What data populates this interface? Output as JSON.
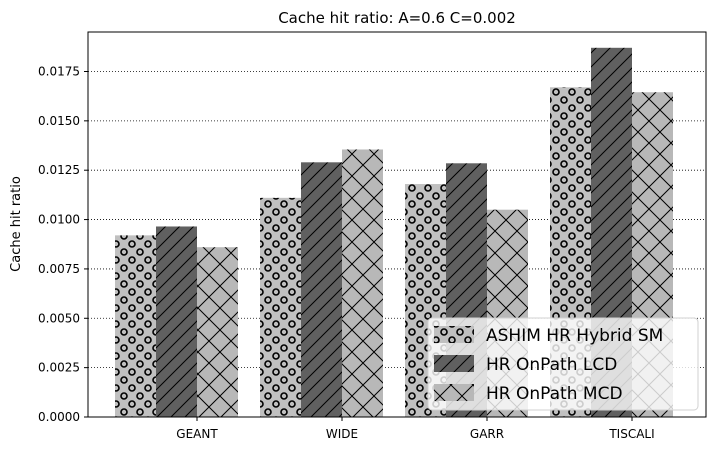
{
  "chart_data": {
    "type": "bar",
    "title": "Cache hit ratio: A=0.6 C=0.002",
    "xlabel": "",
    "ylabel": "Cache hit ratio",
    "categories": [
      "GEANT",
      "WIDE",
      "GARR",
      "TISCALI"
    ],
    "series": [
      {
        "name": "ASHIM HR Hybrid SM",
        "values": [
          0.0092,
          0.0111,
          0.0118,
          0.0167
        ],
        "color": "#c0c0c0",
        "hatch": "circles"
      },
      {
        "name": "HR OnPath LCD",
        "values": [
          0.00965,
          0.0129,
          0.01285,
          0.0187
        ],
        "color": "#606060",
        "hatch": "diagonal"
      },
      {
        "name": "HR OnPath MCD",
        "values": [
          0.0086,
          0.01355,
          0.0105,
          0.01645
        ],
        "color": "#b8b8b8",
        "hatch": "cross"
      }
    ],
    "ylim": [
      0,
      0.0195
    ],
    "yticks": [
      "0.0000",
      "0.0025",
      "0.0050",
      "0.0075",
      "0.0100",
      "0.0125",
      "0.0150",
      "0.0175"
    ],
    "ytick_values": [
      0,
      0.0025,
      0.005,
      0.0075,
      0.01,
      0.0125,
      0.015,
      0.0175
    ],
    "grid": "horizontal-dotted",
    "legend_position": "bottom-right"
  }
}
